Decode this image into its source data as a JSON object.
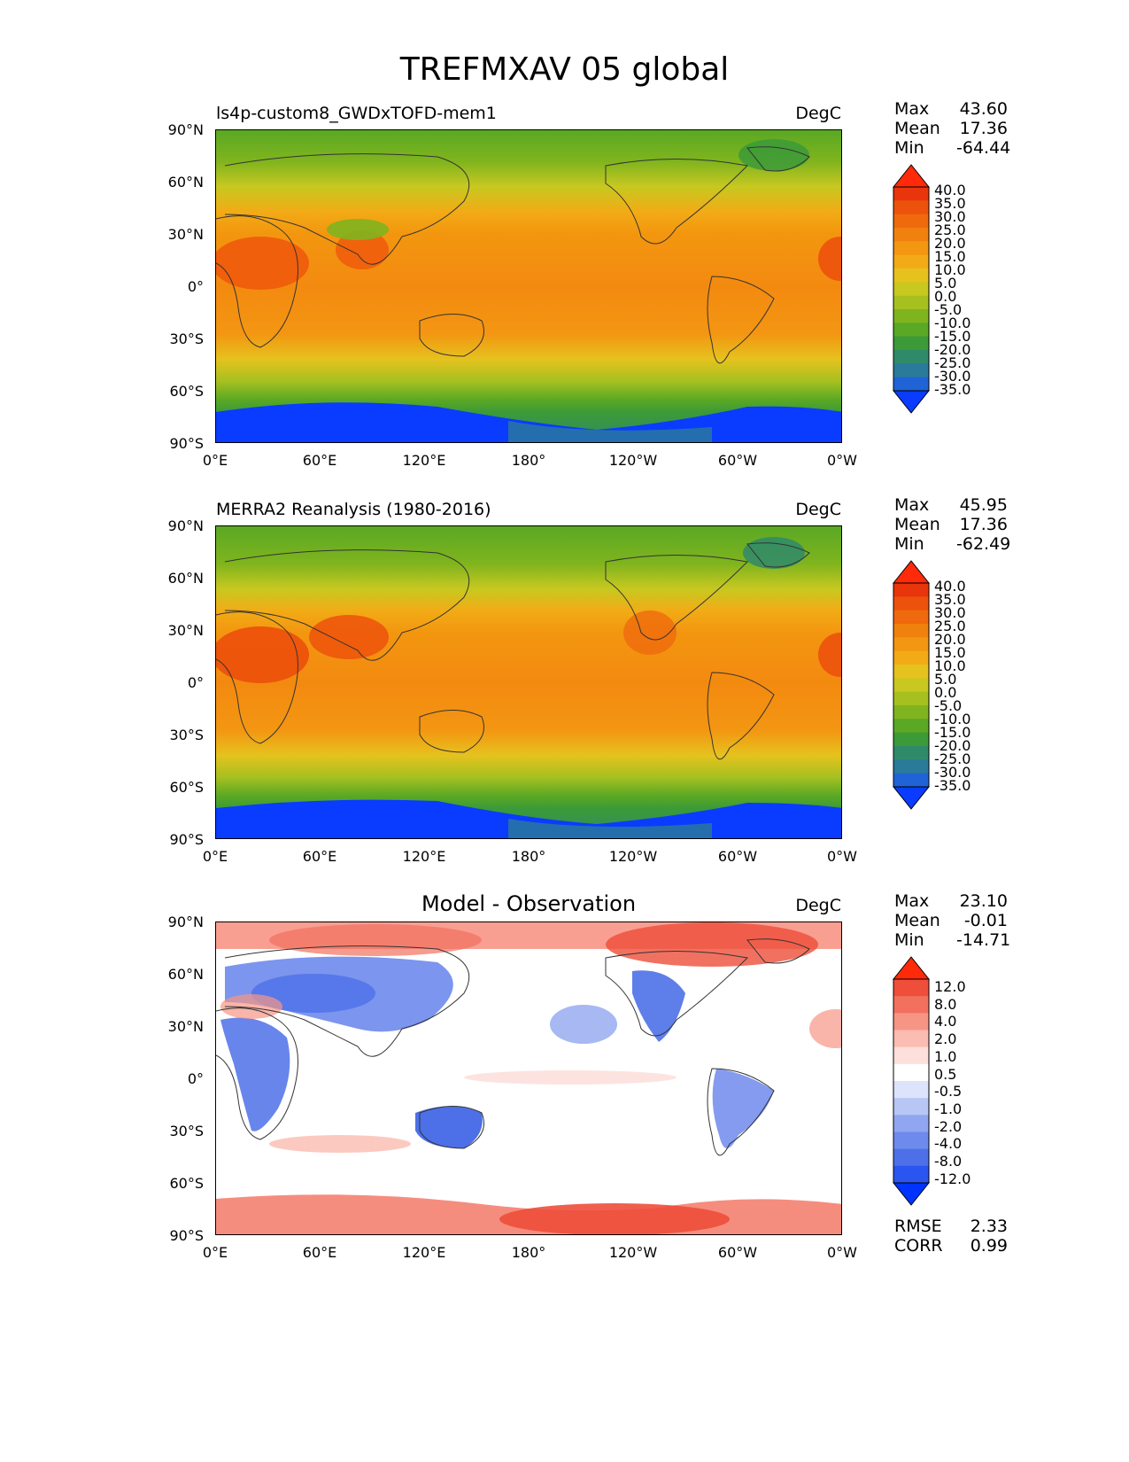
{
  "figure": {
    "title": "TREFMXAV 05 global"
  },
  "panels": [
    {
      "title": "ls4p-custom8_GWDxTOFD-mem1",
      "units": "DegC",
      "stats": [
        {
          "label": "Max",
          "value": "43.60"
        },
        {
          "label": "Mean",
          "value": "17.36"
        },
        {
          "label": "Min",
          "value": "-64.44"
        }
      ],
      "colorbar": {
        "labels": [
          "40.0",
          "35.0",
          "30.0",
          "25.0",
          "20.0",
          "15.0",
          "10.0",
          "5.0",
          "0.0",
          "-5.0",
          "-10.0",
          "-15.0",
          "-20.0",
          "-25.0",
          "-30.0",
          "-35.0"
        ]
      }
    },
    {
      "title": "MERRA2 Reanalysis (1980-2016)",
      "units": "DegC",
      "stats": [
        {
          "label": "Max",
          "value": "45.95"
        },
        {
          "label": "Mean",
          "value": "17.36"
        },
        {
          "label": "Min",
          "value": "-62.49"
        }
      ],
      "colorbar": {
        "labels": [
          "40.0",
          "35.0",
          "30.0",
          "25.0",
          "20.0",
          "15.0",
          "10.0",
          "5.0",
          "0.0",
          "-5.0",
          "-10.0",
          "-15.0",
          "-20.0",
          "-25.0",
          "-30.0",
          "-35.0"
        ]
      }
    },
    {
      "title": "Model - Observation",
      "units": "DegC",
      "stats": [
        {
          "label": "Max",
          "value": "23.10"
        },
        {
          "label": "Mean",
          "value": "-0.01"
        },
        {
          "label": "Min",
          "value": "-14.71"
        }
      ],
      "colorbar": {
        "labels": [
          "12.0",
          "8.0",
          "4.0",
          "2.0",
          "1.0",
          "0.5",
          "-0.5",
          "-1.0",
          "-2.0",
          "-4.0",
          "-8.0",
          "-12.0"
        ]
      },
      "metrics": [
        {
          "label": "RMSE",
          "value": "2.33"
        },
        {
          "label": "CORR",
          "value": "0.99"
        }
      ]
    }
  ],
  "axes": {
    "lat_ticks": [
      "90°N",
      "60°N",
      "30°N",
      "0°",
      "30°S",
      "60°S",
      "90°S"
    ],
    "lon_ticks": [
      "0°E",
      "60°E",
      "120°E",
      "180°",
      "120°W",
      "60°W",
      "0°W"
    ]
  },
  "colors": {
    "temp_scale": [
      "#0a3cff",
      "#1f63d6",
      "#2a7a9a",
      "#2f8a6a",
      "#3c9a38",
      "#5aa824",
      "#80b41e",
      "#a6c020",
      "#c8c820",
      "#e6c21e",
      "#f2ab16",
      "#f39612",
      "#f1810e",
      "#ef6a0c",
      "#ec520c",
      "#e8350c",
      "#ff2a0a"
    ],
    "diff_scale": [
      "#0033ff",
      "#2a55f0",
      "#4d70e8",
      "#6e8aec",
      "#91a6f0",
      "#b8c6f6",
      "#dce3fb",
      "#ffffff",
      "#fde0dc",
      "#fbbcb2",
      "#f79585",
      "#f2705e",
      "#ee4e3a",
      "#ff2a0a"
    ],
    "ocean_warm": "#f28a10",
    "land_ice": "#0a3cff"
  }
}
